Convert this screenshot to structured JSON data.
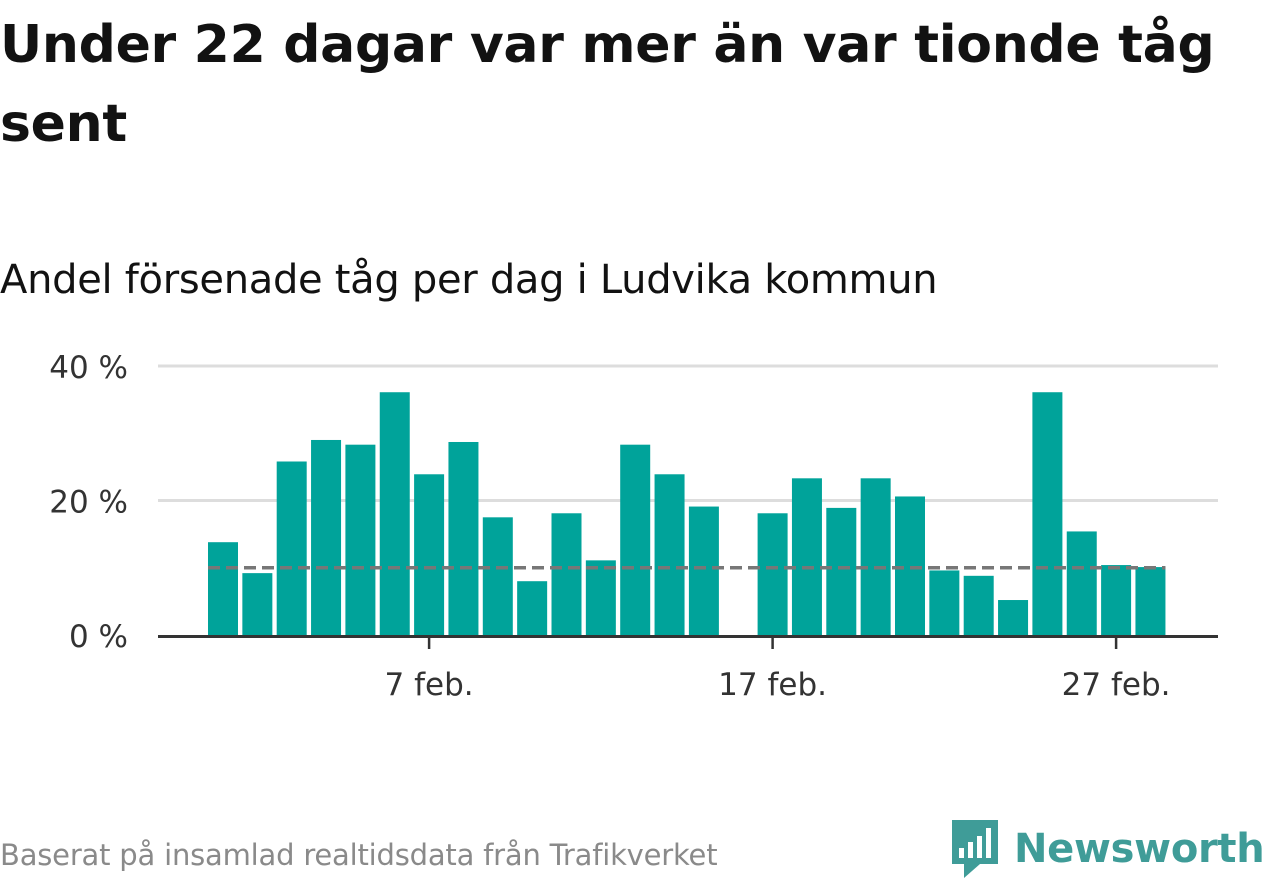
{
  "title": "Under 22 dagar var mer än var tionde tåg sent",
  "subtitle": "Andel försenade tåg per dag i Ludvika kommun",
  "source": "Baserat på insamlad realtidsdata från Trafikverket",
  "logo": {
    "text": "Newsworthy",
    "icon": "newsworthy-logo-icon",
    "color": "#3f9c98"
  },
  "colors": {
    "bar": "#00a39a",
    "reference_line": "#777777",
    "grid": "#dddddd",
    "axis": "#333333"
  },
  "chart_data": {
    "type": "bar",
    "x_unit": "day of February",
    "categories": [
      1,
      2,
      3,
      4,
      5,
      6,
      7,
      8,
      9,
      10,
      11,
      12,
      13,
      14,
      15,
      16,
      17,
      18,
      19,
      20,
      21,
      22,
      23,
      24,
      25,
      26,
      27,
      28
    ],
    "values": [
      13.8,
      9.2,
      25.8,
      29.0,
      28.3,
      36.1,
      23.9,
      28.7,
      17.5,
      8.0,
      18.1,
      11.1,
      28.3,
      23.9,
      19.1,
      null,
      18.1,
      23.3,
      18.9,
      23.3,
      20.6,
      9.6,
      8.8,
      5.2,
      36.1,
      15.4,
      10.4,
      10.1
    ],
    "reference_line": 10,
    "ylim": [
      0,
      40
    ],
    "y_ticks": [
      0,
      20,
      40
    ],
    "y_tick_labels": [
      "0 %",
      "20 %",
      "40 %"
    ],
    "x_ticks": [
      7,
      17,
      27
    ],
    "x_tick_labels": [
      "7 feb.",
      "17 feb.",
      "27 feb."
    ],
    "grid": true
  }
}
